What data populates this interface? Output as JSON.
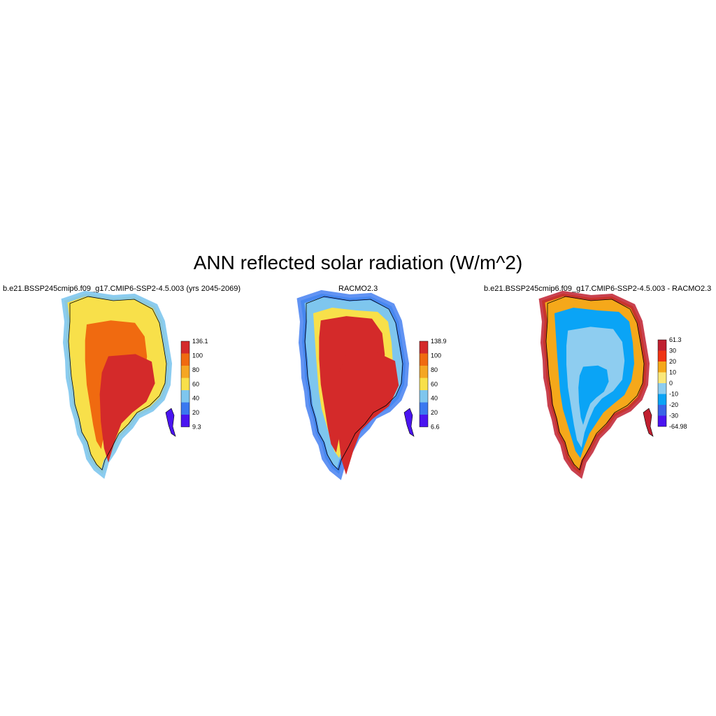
{
  "title": "ANN reflected solar radiation (W/m^2)",
  "colors": {
    "abs": [
      "#4a14f0",
      "#3a78f0",
      "#7ec6ee",
      "#f8e04a",
      "#f5a623",
      "#f06a10",
      "#d42a2a"
    ],
    "diff": [
      "#4a14f0",
      "#3a64e8",
      "#0aa4f6",
      "#8ecdf0",
      "#fae87a",
      "#f5a81a",
      "#f03414",
      "#c02030"
    ]
  },
  "panels": [
    {
      "id": "model",
      "title": "b.e21.BSSP245cmip6.f09_g17.CMIP6-SSP2-4.5.003 (yrs 2045-2069)",
      "colorbar": {
        "labels": [
          "136.1",
          "100",
          "80",
          "60",
          "40",
          "20",
          "9.3"
        ]
      },
      "field": {
        "interior": "red",
        "ring1": "orange",
        "ring2": "yellow",
        "edge": "blue"
      }
    },
    {
      "id": "obs",
      "title": "RACMO2.3",
      "colorbar": {
        "labels": [
          "138.9",
          "100",
          "80",
          "60",
          "40",
          "20",
          "6.6"
        ]
      },
      "field": {
        "interior": "red",
        "ring1": "yellow",
        "ring2": "mixed",
        "edge": "blue"
      }
    },
    {
      "id": "diff",
      "title": "b.e21.BSSP245cmip6.f09_g17.CMIP6-SSP2-4.5.003 - RACMO2.3",
      "colorbar": {
        "labels": [
          "61.3",
          "30",
          "20",
          "10",
          "0",
          "-10",
          "-20",
          "-30",
          "-64.98"
        ]
      },
      "field": {
        "interior": "light blue / blue",
        "edge": "red / orange"
      }
    }
  ]
}
